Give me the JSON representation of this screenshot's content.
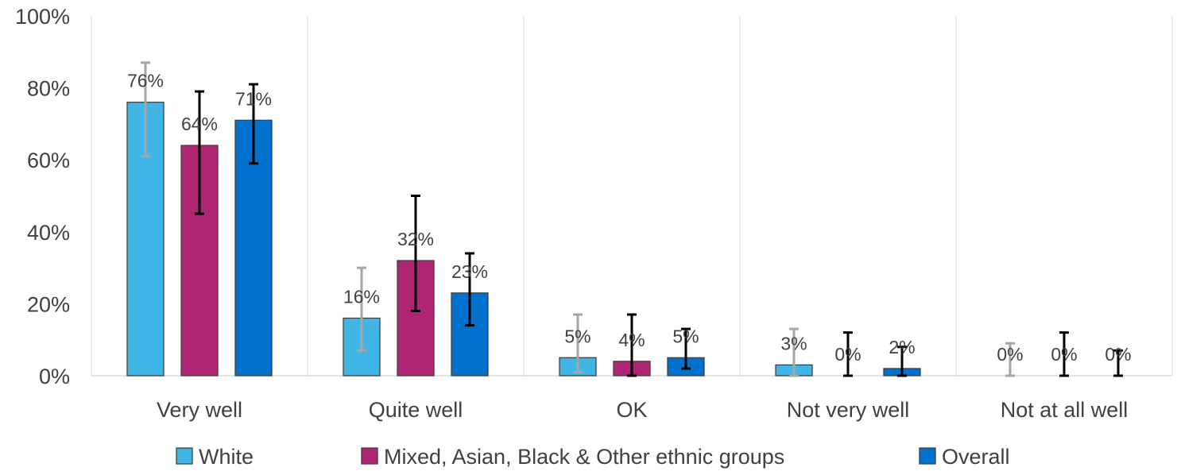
{
  "chart_data": {
    "type": "bar",
    "title": "",
    "xlabel": "",
    "ylabel": "",
    "ylim": [
      0,
      100
    ],
    "y_ticks": [
      "0%",
      "20%",
      "40%",
      "60%",
      "80%",
      "100%"
    ],
    "y_tick_values": [
      0,
      20,
      40,
      60,
      80,
      100
    ],
    "categories": [
      "Very well",
      "Quite well",
      "OK",
      "Not very well",
      "Not at all well"
    ],
    "series": [
      {
        "name": "White",
        "color": "#41B6E6",
        "error_bar_color": "#A6A6A6",
        "values": [
          76,
          16,
          5,
          3,
          0
        ],
        "labels": [
          "76%",
          "16%",
          "5%",
          "3%",
          "0%"
        ],
        "error_low": [
          61,
          7,
          1,
          0,
          0
        ],
        "error_high": [
          87,
          30,
          17,
          13,
          9
        ]
      },
      {
        "name": "Mixed, Asian, Black & Other ethnic groups",
        "color": "#AE2573",
        "error_bar_color": "#000000",
        "values": [
          64,
          32,
          4,
          0,
          0
        ],
        "labels": [
          "64%",
          "32%",
          "4%",
          "0%",
          "0%"
        ],
        "error_low": [
          45,
          18,
          0,
          0,
          0
        ],
        "error_high": [
          79,
          50,
          17,
          12,
          12
        ]
      },
      {
        "name": "Overall",
        "color": "#0072CE",
        "error_bar_color": "#000000",
        "values": [
          71,
          23,
          5,
          2,
          0
        ],
        "labels": [
          "71%",
          "23%",
          "5%",
          "2%",
          "0%"
        ],
        "error_low": [
          59,
          14,
          2,
          0,
          0
        ],
        "error_high": [
          81,
          34,
          13,
          8,
          7
        ]
      }
    ],
    "gridlines": "vertical category separators",
    "legend_position": "bottom"
  }
}
